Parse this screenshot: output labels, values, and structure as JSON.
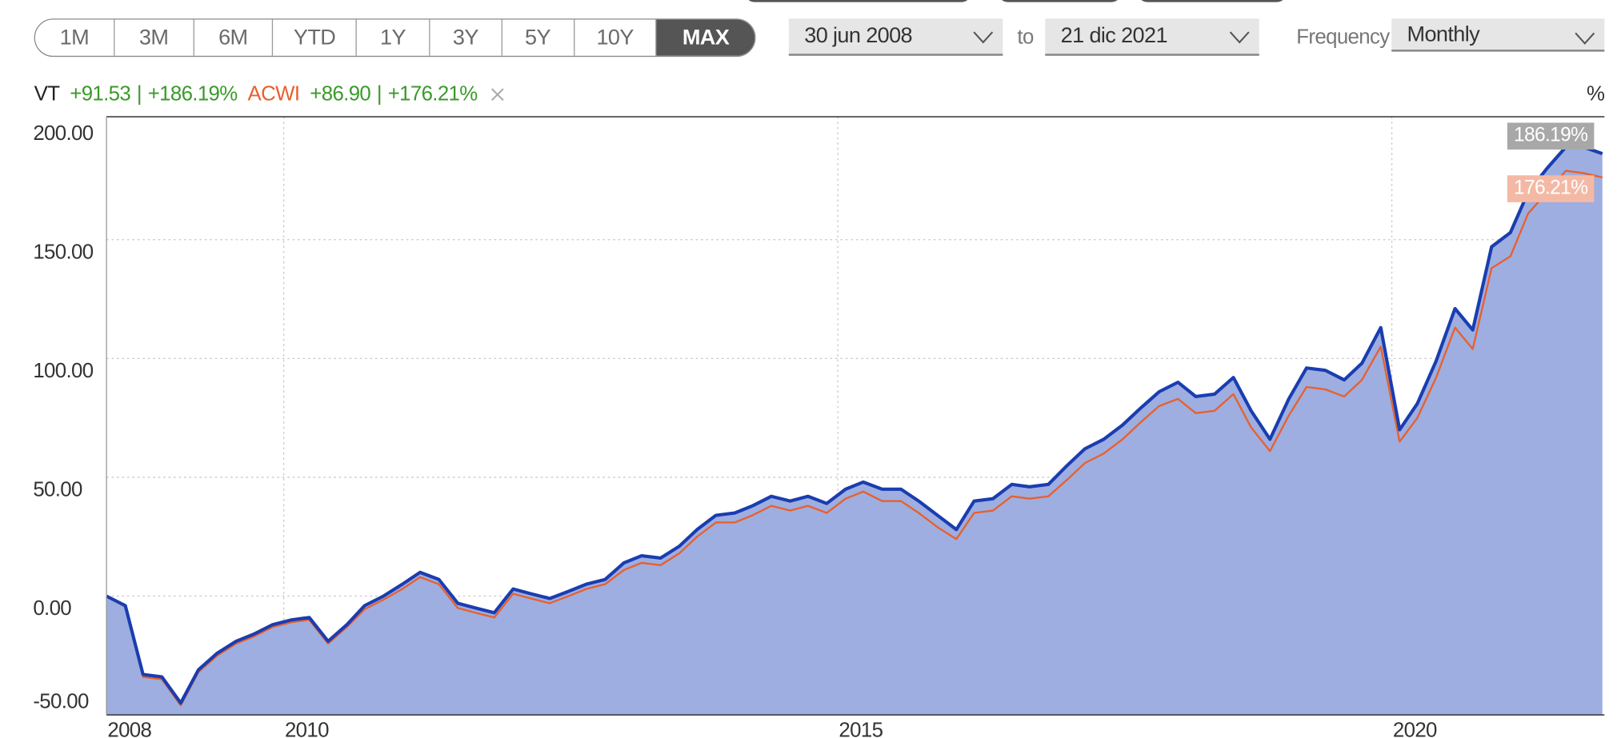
{
  "toolbar": {
    "ranges": [
      "1M",
      "3M",
      "6M",
      "YTD",
      "1Y",
      "3Y",
      "5Y",
      "10Y",
      "MAX"
    ],
    "active_range_index": 8,
    "date_from": "30 jun 2008",
    "to_label": "to",
    "date_to": "21 dic 2021",
    "frequency_label": "Frequency",
    "frequency": "Monthly"
  },
  "chart_data": {
    "type": "line",
    "y_unit": "%",
    "stats_separator": "|",
    "grid": true,
    "xlim": [
      2008.4,
      2021.9
    ],
    "xticks": [
      {
        "value": 2008.4,
        "label": "2008"
      },
      2010,
      2015,
      2020
    ],
    "ylim": [
      -50,
      200
    ],
    "yticks": [
      {
        "value": -50,
        "label": "-50.00"
      },
      {
        "value": 0,
        "label": "0.00"
      },
      {
        "value": 50,
        "label": "50.00"
      },
      {
        "value": 100,
        "label": "100.00"
      },
      {
        "value": 150,
        "label": "150.00"
      },
      {
        "value": 200,
        "label": "200.00"
      }
    ],
    "x": [
      2008.4,
      2008.57,
      2008.73,
      2008.9,
      2009.07,
      2009.23,
      2009.4,
      2009.57,
      2009.73,
      2009.9,
      2010.07,
      2010.23,
      2010.4,
      2010.57,
      2010.73,
      2010.9,
      2011.07,
      2011.23,
      2011.4,
      2011.57,
      2011.73,
      2011.9,
      2012.07,
      2012.23,
      2012.4,
      2012.57,
      2012.73,
      2012.9,
      2013.07,
      2013.23,
      2013.4,
      2013.57,
      2013.73,
      2013.9,
      2014.07,
      2014.23,
      2014.4,
      2014.57,
      2014.73,
      2014.9,
      2015.07,
      2015.23,
      2015.4,
      2015.57,
      2015.73,
      2015.9,
      2016.07,
      2016.23,
      2016.4,
      2016.57,
      2016.73,
      2016.9,
      2017.07,
      2017.23,
      2017.4,
      2017.57,
      2017.73,
      2017.9,
      2018.07,
      2018.23,
      2018.4,
      2018.57,
      2018.73,
      2018.9,
      2019.07,
      2019.23,
      2019.4,
      2019.57,
      2019.73,
      2019.9,
      2020.07,
      2020.23,
      2020.4,
      2020.57,
      2020.73,
      2020.9,
      2021.07,
      2021.23,
      2021.4,
      2021.57,
      2021.73,
      2021.9
    ],
    "series": [
      {
        "name": "VT",
        "color": "#1a3db0",
        "fill": "#9eaee0",
        "change": "+91.53",
        "return": "+186.19%",
        "end_label": "186.19%",
        "values": [
          0,
          -4,
          -33,
          -34,
          -45,
          -31,
          -24,
          -19,
          -16,
          -12,
          -10,
          -9,
          -19,
          -12,
          -4,
          0,
          5,
          10,
          7,
          -3,
          -5,
          -7,
          3,
          1,
          -1,
          2,
          5,
          7,
          14,
          17,
          16,
          21,
          28,
          34,
          35,
          38,
          42,
          40,
          42,
          39,
          45,
          48,
          45,
          45,
          40,
          34,
          28,
          40,
          41,
          47,
          46,
          47,
          55,
          62,
          66,
          72,
          79,
          86,
          90,
          84,
          85,
          92,
          78,
          66,
          83,
          96,
          95,
          91,
          98,
          113,
          70,
          81,
          99,
          121,
          112,
          147,
          153,
          170,
          180,
          189,
          189,
          186.19
        ]
      },
      {
        "name": "ACWI",
        "color": "#e8602c",
        "change": "+86.90",
        "return": "+176.21%",
        "end_label": "176.21%",
        "values": [
          0,
          -4.5,
          -34,
          -35,
          -46,
          -32,
          -25,
          -20,
          -17,
          -13,
          -11,
          -10,
          -20,
          -13,
          -5.5,
          -1.5,
          3,
          8,
          5,
          -5,
          -7,
          -9,
          1,
          -1,
          -3,
          0,
          3,
          5,
          11,
          14,
          13,
          18,
          25,
          31,
          31,
          34,
          38,
          36,
          38,
          35,
          41,
          44,
          40,
          40,
          35,
          29,
          24,
          35,
          36,
          42,
          41,
          42,
          49,
          56,
          60,
          66,
          73,
          80,
          83,
          77,
          78,
          85,
          71,
          61,
          76,
          88,
          87,
          84,
          91,
          105,
          65,
          75,
          92,
          113,
          104,
          138,
          143,
          161,
          170,
          179,
          178,
          176.21
        ]
      }
    ]
  }
}
